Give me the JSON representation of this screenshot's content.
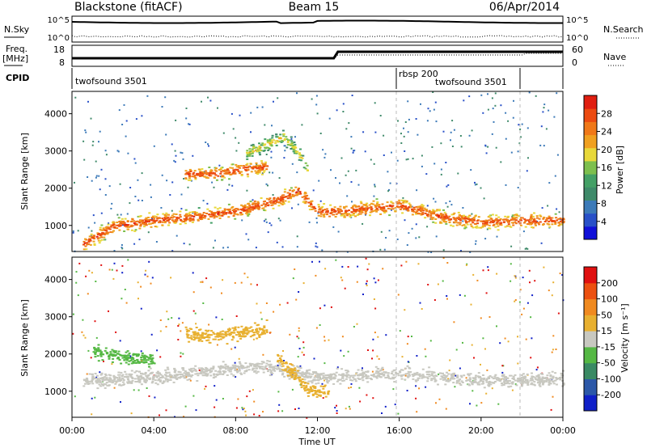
{
  "header": {
    "station": "Blackstone (fitACF)",
    "beam": "Beam 15",
    "date": "06/Apr/2014"
  },
  "panels": {
    "nsky_label": "N.Sky",
    "nsky_ticks": [
      "10^5",
      "10^0"
    ],
    "nsearch_label": "N.Search",
    "nsearch_ticks": [
      "10^5",
      "10^0"
    ],
    "freq_label": "Freq.",
    "freq_unit": "[MHz]",
    "freq_ticks": [
      "18",
      "8"
    ],
    "nave_label": "Nave",
    "nave_ticks": [
      "60",
      "0"
    ],
    "cpid_label": "CPID",
    "cpid_segments": [
      {
        "name": "twofsound 3501",
        "start": "00:00",
        "end": "16:00"
      },
      {
        "name": "rbsp 200",
        "start": "16:00",
        "end": "22:00"
      },
      {
        "name": "twofsound 3501",
        "start": "16:00",
        "end": "22:00"
      }
    ]
  },
  "colors": {
    "power_scale": [
      "#1010d8",
      "#2850c8",
      "#3c7ab8",
      "#3f8a6a",
      "#44a066",
      "#7dbf4e",
      "#e8d83a",
      "#f0a020",
      "#f07818",
      "#ec4a10",
      "#e01e10"
    ],
    "velocity_scale": [
      "#1020c8",
      "#2c58a8",
      "#3a8a64",
      "#55b844",
      "#c8c8c0",
      "#e8b030",
      "#f08a20",
      "#ec5010",
      "#e01010"
    ]
  },
  "chart_data": [
    {
      "type": "heatmap",
      "title": "Power",
      "xlabel": "Time UT",
      "ylabel": "Slant Range [km]",
      "x_ticks": [
        "00:00",
        "04:00",
        "08:00",
        "12:00",
        "16:00",
        "20:00",
        "00:00"
      ],
      "y_ticks": [
        1000,
        2000,
        3000,
        4000
      ],
      "ylim": [
        300,
        4600
      ],
      "colorbar": {
        "label": "Power [dB]",
        "ticks": [
          4,
          8,
          12,
          16,
          20,
          24,
          28
        ],
        "range": [
          0,
          32
        ]
      },
      "bands": [
        {
          "x": [
            0.5,
            2,
            4,
            6,
            8,
            10,
            11,
            12,
            13,
            16,
            18,
            20,
            22,
            24
          ],
          "y": [
            500,
            1000,
            1150,
            1250,
            1400,
            1700,
            1950,
            1400,
            1400,
            1550,
            1250,
            1100,
            1150,
            1150
          ],
          "level": 20
        },
        {
          "x": [
            5.5,
            7,
            8,
            9.5
          ],
          "y": [
            2400,
            2400,
            2500,
            2600
          ],
          "level": 20
        },
        {
          "x": [
            8.5,
            9.5,
            10.3,
            11,
            11.5
          ],
          "y": [
            2950,
            3200,
            3400,
            3000,
            2500
          ],
          "level": 12
        }
      ]
    },
    {
      "type": "heatmap",
      "title": "Velocity",
      "xlabel": "Time UT",
      "ylabel": "Slant Range [km]",
      "x_ticks": [
        "00:00",
        "04:00",
        "08:00",
        "12:00",
        "16:00",
        "20:00",
        "00:00"
      ],
      "y_ticks": [
        1000,
        2000,
        3000,
        4000
      ],
      "ylim": [
        300,
        4600
      ],
      "colorbar": {
        "label": "Velocity [m s⁻¹]",
        "ticks": [
          200,
          100,
          50,
          15,
          -15,
          -50,
          -100,
          -200
        ],
        "range": [
          -250,
          250
        ]
      },
      "bands": [
        {
          "x": [
            0.5,
            3,
            6,
            9,
            12,
            13,
            16,
            20,
            24
          ],
          "y": [
            1300,
            1350,
            1500,
            1700,
            1400,
            1400,
            1500,
            1300,
            1350
          ],
          "level": 0
        },
        {
          "x": [
            5.5,
            7,
            9.5
          ],
          "y": [
            2550,
            2500,
            2700
          ],
          "level": 40
        },
        {
          "x": [
            10,
            10.8,
            11.5,
            12.5
          ],
          "y": [
            1900,
            1500,
            1100,
            950
          ],
          "level": 40
        },
        {
          "x": [
            1,
            2,
            3,
            4
          ],
          "y": [
            2100,
            2000,
            1900,
            1850
          ],
          "level": -60
        }
      ]
    }
  ]
}
